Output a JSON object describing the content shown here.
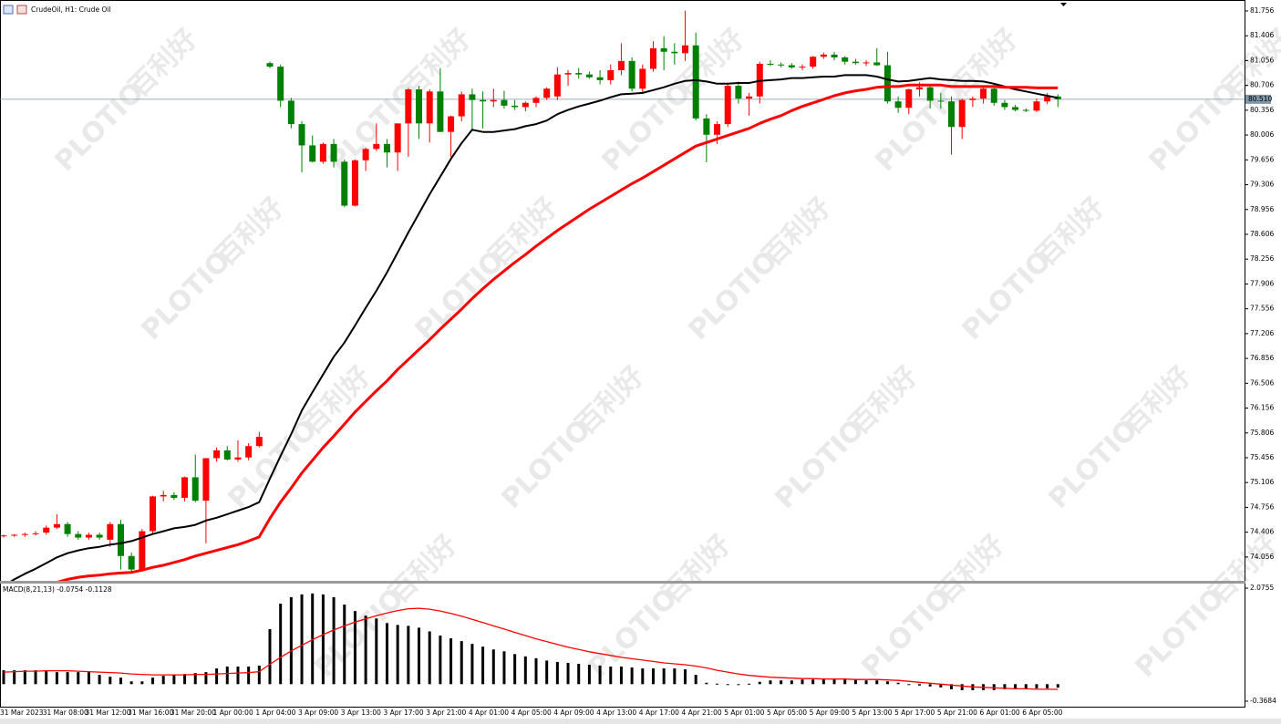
{
  "chart_data": [
    {
      "type": "candlestick",
      "title": "CrudeOil, H1:  Crude Oil",
      "up_color": "#ff0000",
      "down_color": "#008000",
      "open": [
        74.35,
        74.36,
        74.37,
        74.38,
        74.4,
        74.47,
        74.52,
        74.38,
        74.33,
        74.37,
        74.3,
        74.52,
        74.07,
        73.88,
        74.42,
        74.91,
        74.93,
        74.89,
        75.18,
        74.85,
        75.45,
        75.56,
        75.43,
        75.46,
        75.62,
        81.02,
        80.97,
        80.49,
        80.16,
        79.86,
        79.63,
        79.88,
        79.63,
        79.01,
        79.65,
        79.81,
        79.88,
        79.76,
        80.17,
        80.65,
        80.17,
        80.62,
        80.05,
        80.27,
        80.58,
        80.5,
        80.48,
        80.5,
        80.42,
        80.4,
        80.46,
        80.53,
        80.55,
        80.86,
        80.88,
        80.86,
        80.82,
        80.78,
        80.92,
        81.05,
        80.66,
        80.94,
        81.23,
        81.18,
        81.16,
        81.27,
        80.24,
        80.01,
        80.16,
        80.7,
        80.52,
        80.55,
        81.01,
        81.0,
        80.99,
        80.96,
        80.97,
        81.11,
        81.14,
        81.1,
        81.04,
        81.02,
        81.03,
        80.99,
        80.48,
        80.39,
        80.65,
        80.68,
        80.49,
        80.48,
        80.12,
        80.5,
        80.52,
        80.66,
        80.46,
        80.4,
        80.36,
        80.35,
        80.48,
        80.55
      ],
      "high": [
        74.37,
        74.38,
        74.4,
        74.42,
        74.5,
        74.66,
        74.55,
        74.42,
        74.4,
        74.4,
        74.55,
        74.58,
        74.12,
        74.45,
        74.92,
        74.99,
        74.97,
        75.19,
        75.5,
        75.45,
        75.6,
        75.62,
        75.7,
        75.66,
        75.82,
        81.04,
        81.0,
        80.53,
        80.2,
        80.0,
        79.9,
        79.95,
        79.66,
        79.66,
        79.83,
        80.17,
        79.95,
        80.17,
        80.67,
        80.7,
        80.65,
        80.95,
        80.28,
        80.62,
        80.66,
        80.62,
        80.66,
        80.63,
        80.5,
        80.48,
        80.55,
        80.68,
        80.96,
        80.92,
        80.95,
        80.9,
        80.92,
        81.0,
        81.3,
        81.1,
        81.0,
        81.33,
        81.4,
        81.3,
        81.76,
        81.45,
        80.3,
        80.2,
        80.72,
        80.76,
        80.6,
        81.04,
        81.06,
        81.03,
        81.02,
        81.0,
        81.12,
        81.17,
        81.18,
        81.12,
        81.08,
        81.06,
        81.23,
        81.18,
        80.55,
        80.66,
        80.75,
        80.72,
        80.6,
        80.55,
        80.52,
        80.55,
        80.68,
        80.72,
        80.5,
        80.43,
        80.38,
        80.52,
        80.6,
        80.58
      ],
      "low": [
        74.33,
        74.34,
        74.34,
        74.36,
        74.37,
        74.45,
        74.34,
        74.3,
        74.3,
        74.3,
        74.2,
        73.88,
        73.85,
        73.86,
        74.38,
        74.84,
        74.86,
        74.84,
        74.83,
        74.25,
        75.4,
        75.42,
        75.4,
        75.42,
        75.6,
        80.95,
        80.4,
        80.1,
        79.48,
        79.62,
        79.6,
        79.55,
        78.99,
        79.0,
        79.5,
        79.78,
        79.55,
        79.5,
        79.7,
        79.95,
        79.9,
        80.05,
        79.7,
        80.2,
        80.06,
        80.1,
        80.4,
        80.38,
        80.36,
        80.34,
        80.4,
        80.5,
        80.5,
        80.7,
        80.8,
        80.8,
        80.72,
        80.72,
        80.85,
        80.62,
        80.6,
        80.9,
        80.92,
        81.0,
        81.05,
        80.21,
        79.62,
        79.88,
        80.12,
        80.45,
        80.28,
        80.45,
        80.98,
        80.96,
        80.94,
        80.92,
        80.94,
        81.08,
        81.06,
        81.0,
        81.0,
        80.98,
        80.98,
        80.45,
        80.32,
        80.3,
        80.55,
        80.38,
        80.38,
        79.73,
        79.95,
        80.4,
        80.45,
        80.42,
        80.36,
        80.34,
        80.33,
        80.33,
        80.44,
        80.4
      ],
      "close": [
        74.36,
        74.37,
        74.38,
        74.39,
        74.47,
        74.52,
        74.38,
        74.33,
        74.37,
        74.33,
        74.52,
        74.07,
        73.88,
        74.42,
        74.91,
        74.93,
        74.89,
        75.18,
        74.85,
        75.45,
        75.56,
        75.43,
        75.46,
        75.62,
        75.75,
        80.97,
        80.49,
        80.16,
        79.86,
        79.63,
        79.88,
        79.63,
        79.01,
        79.65,
        79.81,
        79.88,
        79.76,
        80.17,
        80.65,
        80.17,
        80.62,
        80.05,
        80.27,
        80.58,
        80.5,
        80.48,
        80.5,
        80.42,
        80.4,
        80.46,
        80.53,
        80.66,
        80.86,
        80.88,
        80.86,
        80.82,
        80.78,
        80.92,
        81.05,
        80.66,
        80.94,
        81.23,
        81.18,
        81.16,
        81.27,
        80.24,
        80.01,
        80.16,
        80.7,
        80.52,
        80.55,
        81.01,
        81.0,
        80.99,
        80.96,
        80.97,
        81.11,
        81.14,
        81.1,
        81.04,
        81.02,
        81.03,
        80.99,
        80.48,
        80.39,
        80.65,
        80.68,
        80.49,
        80.48,
        80.12,
        80.5,
        80.52,
        80.66,
        80.46,
        80.4,
        80.36,
        80.35,
        80.48,
        80.55,
        80.51
      ],
      "lines": [
        {
          "color": "#000000",
          "values": [
            73.65,
            73.74,
            73.82,
            73.89,
            73.97,
            74.05,
            74.11,
            74.15,
            74.18,
            74.2,
            74.23,
            74.25,
            74.28,
            74.33,
            74.38,
            74.42,
            74.46,
            74.48,
            74.51,
            74.57,
            74.61,
            74.66,
            74.71,
            74.76,
            74.83,
            75.16,
            75.48,
            75.79,
            76.12,
            76.38,
            76.63,
            76.88,
            77.08,
            77.32,
            77.57,
            77.81,
            78.07,
            78.35,
            78.63,
            78.9,
            79.17,
            79.42,
            79.67,
            79.89,
            80.08,
            80.05,
            80.05,
            80.07,
            80.09,
            80.13,
            80.16,
            80.21,
            80.3,
            80.36,
            80.41,
            80.45,
            80.49,
            80.54,
            80.58,
            80.59,
            80.6,
            80.64,
            80.68,
            80.73,
            80.77,
            80.78,
            80.76,
            80.73,
            80.73,
            80.74,
            80.74,
            80.77,
            80.78,
            80.79,
            80.81,
            80.81,
            80.82,
            80.83,
            80.83,
            80.85,
            80.85,
            80.85,
            80.83,
            80.79,
            80.76,
            80.77,
            80.79,
            80.81,
            80.79,
            80.78,
            80.77,
            80.77,
            80.76,
            80.73,
            80.69,
            80.65,
            80.62,
            80.59,
            80.56,
            80.53
          ]
        },
        {
          "color": "#ff0000",
          "values": [
            73.46,
            73.51,
            73.56,
            73.61,
            73.66,
            73.7,
            73.74,
            73.77,
            73.79,
            73.8,
            73.82,
            73.83,
            73.84,
            73.87,
            73.91,
            73.94,
            73.98,
            74.02,
            74.07,
            74.11,
            74.15,
            74.19,
            74.23,
            74.28,
            74.34,
            74.6,
            74.83,
            75.03,
            75.24,
            75.42,
            75.6,
            75.76,
            75.93,
            76.1,
            76.25,
            76.4,
            76.54,
            76.7,
            76.84,
            76.98,
            77.12,
            77.27,
            77.41,
            77.55,
            77.7,
            77.84,
            77.97,
            78.09,
            78.21,
            78.32,
            78.44,
            78.55,
            78.66,
            78.76,
            78.86,
            78.96,
            79.05,
            79.14,
            79.23,
            79.32,
            79.4,
            79.49,
            79.58,
            79.67,
            79.76,
            79.85,
            79.9,
            79.95,
            80.0,
            80.05,
            80.1,
            80.17,
            80.23,
            80.28,
            80.35,
            80.41,
            80.46,
            80.51,
            80.56,
            80.6,
            80.63,
            80.65,
            80.68,
            80.69,
            80.69,
            80.71,
            80.71,
            80.71,
            80.71,
            80.69,
            80.69,
            80.69,
            80.69,
            80.69,
            80.68,
            80.68,
            80.68,
            80.67,
            80.67,
            80.67
          ]
        }
      ],
      "current_price": {
        "value": 80.51,
        "label": "80.510"
      },
      "ylim": [
        73.72,
        81.91
      ],
      "yticks": [
        81.756,
        81.406,
        81.056,
        80.706,
        80.356,
        80.006,
        79.656,
        79.306,
        78.956,
        78.606,
        78.256,
        77.906,
        77.556,
        77.206,
        76.856,
        76.506,
        76.156,
        75.806,
        75.456,
        75.106,
        74.756,
        74.406,
        74.056
      ],
      "grid": false
    },
    {
      "type": "macd",
      "title": "MACD(8,21,13) -0.0754 -0.1128",
      "categories": [
        "31 Mar 2023",
        null,
        null,
        null,
        "31 Mar 08:00",
        null,
        null,
        null,
        "31 Mar 12:00",
        null,
        null,
        null,
        "31 Mar 16:00",
        null,
        null,
        null,
        "31 Mar 20:00",
        null,
        null,
        null,
        "1 Apr 00:00",
        null,
        null,
        null,
        "1 Apr 04:00",
        null,
        null,
        null,
        "3 Apr 09:00",
        null,
        null,
        null,
        "3 Apr 13:00",
        null,
        null,
        null,
        "3 Apr 17:00",
        null,
        null,
        null,
        "3 Apr 21:00",
        null,
        null,
        null,
        "4 Apr 01:00",
        null,
        null,
        null,
        "4 Apr 05:00",
        null,
        null,
        null,
        "4 Apr 09:00",
        null,
        null,
        null,
        "4 Apr 13:00",
        null,
        null,
        null,
        "4 Apr 17:00",
        null,
        null,
        null,
        "4 Apr 21:00",
        null,
        null,
        null,
        "5 Apr 01:00",
        null,
        null,
        null,
        "5 Apr 05:00",
        null,
        null,
        null,
        "5 Apr 09:00",
        null,
        null,
        null,
        "5 Apr 13:00",
        null,
        null,
        null,
        "5 Apr 17:00",
        null,
        null,
        null,
        "5 Apr 21:00",
        null,
        null,
        null,
        "6 Apr 01:00",
        null,
        null,
        null,
        "6 Apr 05:00",
        null,
        null,
        null
      ],
      "histogram": {
        "color": "#000000",
        "values": [
          0.3,
          0.3,
          0.3,
          0.3,
          0.3,
          0.26,
          0.26,
          0.26,
          0.26,
          0.2,
          0.16,
          0.14,
          0.06,
          0.06,
          0.14,
          0.18,
          0.2,
          0.22,
          0.24,
          0.26,
          0.34,
          0.38,
          0.38,
          0.38,
          0.4,
          1.19,
          1.74,
          1.88,
          1.94,
          1.96,
          1.94,
          1.88,
          1.72,
          1.58,
          1.48,
          1.42,
          1.32,
          1.28,
          1.26,
          1.22,
          1.14,
          1.05,
          0.99,
          0.93,
          0.87,
          0.81,
          0.75,
          0.71,
          0.65,
          0.6,
          0.56,
          0.51,
          0.48,
          0.46,
          0.44,
          0.42,
          0.4,
          0.38,
          0.38,
          0.36,
          0.34,
          0.34,
          0.34,
          0.34,
          0.32,
          0.2,
          0.03,
          0.01,
          -0.01,
          -0.01,
          0.01,
          0.05,
          0.08,
          0.08,
          0.08,
          0.1,
          0.1,
          0.1,
          0.1,
          0.1,
          0.1,
          0.08,
          0.08,
          0.06,
          0.03,
          -0.01,
          -0.03,
          -0.05,
          -0.07,
          -0.11,
          -0.13,
          -0.13,
          -0.13,
          -0.13,
          -0.11,
          -0.11,
          -0.11,
          -0.09,
          -0.09,
          -0.0754
        ]
      },
      "signal": {
        "color": "#ff0000",
        "values": [
          0.26,
          0.27,
          0.28,
          0.28,
          0.29,
          0.29,
          0.29,
          0.28,
          0.27,
          0.26,
          0.25,
          0.24,
          0.22,
          0.21,
          0.2,
          0.2,
          0.2,
          0.2,
          0.21,
          0.21,
          0.22,
          0.23,
          0.24,
          0.25,
          0.27,
          0.43,
          0.58,
          0.72,
          0.84,
          0.96,
          1.07,
          1.17,
          1.26,
          1.34,
          1.41,
          1.48,
          1.54,
          1.59,
          1.63,
          1.64,
          1.62,
          1.58,
          1.53,
          1.47,
          1.4,
          1.33,
          1.26,
          1.19,
          1.12,
          1.05,
          0.98,
          0.92,
          0.86,
          0.8,
          0.75,
          0.7,
          0.66,
          0.62,
          0.58,
          0.55,
          0.52,
          0.49,
          0.46,
          0.44,
          0.42,
          0.39,
          0.35,
          0.3,
          0.26,
          0.22,
          0.19,
          0.17,
          0.15,
          0.14,
          0.13,
          0.12,
          0.12,
          0.11,
          0.11,
          0.11,
          0.1,
          0.1,
          0.1,
          0.09,
          0.08,
          0.06,
          0.04,
          0.02,
          0.0,
          -0.02,
          -0.04,
          -0.06,
          -0.07,
          -0.08,
          -0.09,
          -0.1,
          -0.1,
          -0.11,
          -0.11,
          -0.1128
        ]
      },
      "ylim": [
        -0.487,
        2.174
      ],
      "yticks": [
        2.0755,
        -0.3684
      ]
    }
  ],
  "watermark": {
    "brand": "PLOTIO",
    "chinese": "百利好"
  }
}
